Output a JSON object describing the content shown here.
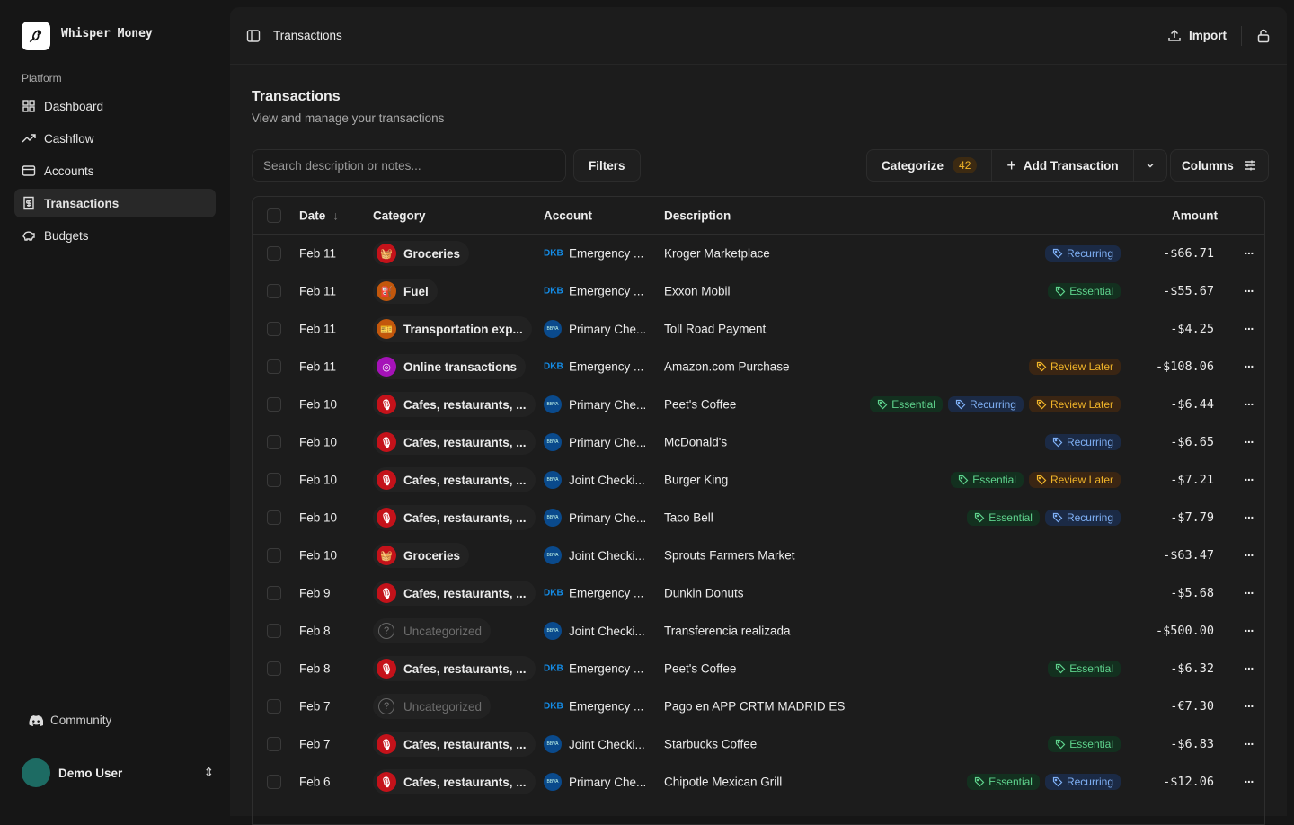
{
  "app": {
    "name": "Whisper Money"
  },
  "sidebar": {
    "section": "Platform",
    "items": [
      {
        "label": "Dashboard",
        "icon": "grid-icon"
      },
      {
        "label": "Cashflow",
        "icon": "trending-up-icon"
      },
      {
        "label": "Accounts",
        "icon": "credit-card-icon"
      },
      {
        "label": "Transactions",
        "icon": "receipt-icon",
        "active": true
      },
      {
        "label": "Budgets",
        "icon": "piggy-bank-icon"
      }
    ],
    "community": "Community",
    "user": "Demo User"
  },
  "topbar": {
    "breadcrumb": "Transactions",
    "import": "Import"
  },
  "page": {
    "title": "Transactions",
    "subtitle": "View and manage your transactions"
  },
  "toolbar": {
    "search_placeholder": "Search description or notes...",
    "filters": "Filters",
    "categorize": "Categorize",
    "categorize_count": "42",
    "add": "Add Transaction",
    "columns": "Columns"
  },
  "columns": {
    "date": "Date",
    "category": "Category",
    "account": "Account",
    "description": "Description",
    "amount": "Amount"
  },
  "tag_colors": {
    "Essential": [
      "#13301f",
      "#5fd38d"
    ],
    "Recurring": [
      "#1b2a45",
      "#7fb0f5"
    ],
    "Review Later": [
      "#3a2513",
      "#f0b429"
    ]
  },
  "category_colors": {
    "Groceries": "#c4121a",
    "Fuel": "#c2570c",
    "Transportation exp...": "#c2570c",
    "Online transactions": "#a512b8",
    "Cafes, restaurants, ...": "#c4121a"
  },
  "rows": [
    {
      "date": "Feb 11",
      "category": "Groceries",
      "bank": "DKB",
      "account": "Emergency ...",
      "description": "Kroger Marketplace",
      "tags": [
        "Recurring"
      ],
      "amount": "-$66.71"
    },
    {
      "date": "Feb 11",
      "category": "Fuel",
      "bank": "DKB",
      "account": "Emergency ...",
      "description": "Exxon Mobil",
      "tags": [
        "Essential"
      ],
      "amount": "-$55.67"
    },
    {
      "date": "Feb 11",
      "category": "Transportation exp...",
      "bank": "BBVA",
      "account": "Primary Che...",
      "description": "Toll Road Payment",
      "tags": [],
      "amount": "-$4.25"
    },
    {
      "date": "Feb 11",
      "category": "Online transactions",
      "bank": "DKB",
      "account": "Emergency ...",
      "description": "Amazon.com Purchase",
      "tags": [
        "Review Later"
      ],
      "amount": "-$108.06"
    },
    {
      "date": "Feb 10",
      "category": "Cafes, restaurants, ...",
      "bank": "BBVA",
      "account": "Primary Che...",
      "description": "Peet's Coffee",
      "tags": [
        "Essential",
        "Recurring",
        "Review Later"
      ],
      "amount": "-$6.44"
    },
    {
      "date": "Feb 10",
      "category": "Cafes, restaurants, ...",
      "bank": "BBVA",
      "account": "Primary Che...",
      "description": "McDonald's",
      "tags": [
        "Recurring"
      ],
      "amount": "-$6.65"
    },
    {
      "date": "Feb 10",
      "category": "Cafes, restaurants, ...",
      "bank": "BBVA",
      "account": "Joint Checki...",
      "description": "Burger King",
      "tags": [
        "Essential",
        "Review Later"
      ],
      "amount": "-$7.21"
    },
    {
      "date": "Feb 10",
      "category": "Cafes, restaurants, ...",
      "bank": "BBVA",
      "account": "Primary Che...",
      "description": "Taco Bell",
      "tags": [
        "Essential",
        "Recurring"
      ],
      "amount": "-$7.79"
    },
    {
      "date": "Feb 10",
      "category": "Groceries",
      "bank": "BBVA",
      "account": "Joint Checki...",
      "description": "Sprouts Farmers Market",
      "tags": [],
      "amount": "-$63.47"
    },
    {
      "date": "Feb 9",
      "category": "Cafes, restaurants, ...",
      "bank": "DKB",
      "account": "Emergency ...",
      "description": "Dunkin Donuts",
      "tags": [],
      "amount": "-$5.68"
    },
    {
      "date": "Feb 8",
      "category": "Uncategorized",
      "bank": "BBVA",
      "account": "Joint Checki...",
      "description": "Transferencia realizada",
      "tags": [],
      "amount": "-$500.00"
    },
    {
      "date": "Feb 8",
      "category": "Cafes, restaurants, ...",
      "bank": "DKB",
      "account": "Emergency ...",
      "description": "Peet's Coffee",
      "tags": [
        "Essential"
      ],
      "amount": "-$6.32"
    },
    {
      "date": "Feb 7",
      "category": "Uncategorized",
      "bank": "DKB",
      "account": "Emergency ...",
      "description": "Pago en APP CRTM MADRID ES",
      "tags": [],
      "amount": "-€7.30"
    },
    {
      "date": "Feb 7",
      "category": "Cafes, restaurants, ...",
      "bank": "BBVA",
      "account": "Joint Checki...",
      "description": "Starbucks Coffee",
      "tags": [
        "Essential"
      ],
      "amount": "-$6.83"
    },
    {
      "date": "Feb 6",
      "category": "Cafes, restaurants, ...",
      "bank": "BBVA",
      "account": "Primary Che...",
      "description": "Chipotle Mexican Grill",
      "tags": [
        "Essential",
        "Recurring"
      ],
      "amount": "-$12.06"
    }
  ]
}
